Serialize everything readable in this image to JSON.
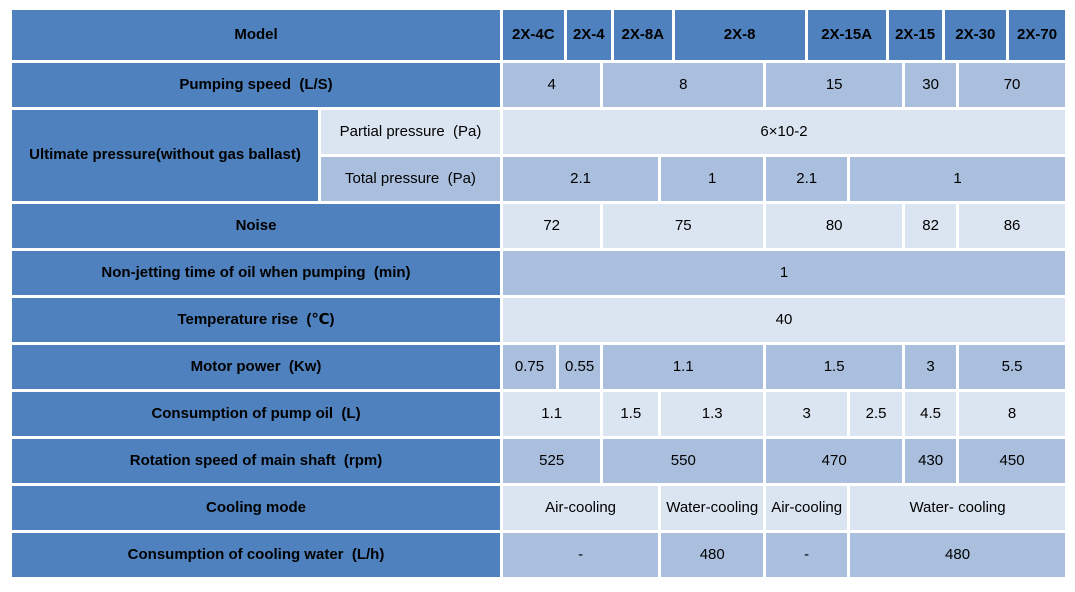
{
  "colors": {
    "header_bg": "#4E81BD",
    "row_light_bg": "#DBE5F1",
    "row_medium_bg": "#A9BFDD",
    "border": "#FFFFFF",
    "text": "#000000"
  },
  "header": {
    "model_label": "Model",
    "models": [
      "2X-4C",
      "2X-4",
      "2X-8A",
      "2X-8",
      "2X-15A",
      "2X-15",
      "2X-30",
      "2X-70"
    ]
  },
  "ultimate": {
    "label": "Ultimate pressure(without gas ballast)",
    "sub_rows": [
      {
        "label": "Partial pressure  (Pa)",
        "shade": "light",
        "cells": [
          {
            "v": "6×10-2",
            "span": 8
          }
        ]
      },
      {
        "label": "Total pressure  (Pa)",
        "shade": "medium",
        "cells": [
          {
            "v": "2.1",
            "span": 3
          },
          {
            "v": "1",
            "span": 1
          },
          {
            "v": "2.1",
            "span": 1
          },
          {
            "v": "1",
            "span": 3
          }
        ]
      }
    ]
  },
  "rows": [
    {
      "label": "Pumping speed  (L/S)",
      "shade": "medium",
      "cells": [
        {
          "v": "4",
          "span": 2
        },
        {
          "v": "8",
          "span": 2
        },
        {
          "v": "15",
          "span": 2
        },
        {
          "v": "30",
          "span": 1
        },
        {
          "v": "70",
          "span": 1
        }
      ]
    },
    {
      "label": "Noise",
      "shade": "light",
      "cells": [
        {
          "v": "72",
          "span": 2
        },
        {
          "v": "75",
          "span": 2
        },
        {
          "v": "80",
          "span": 2
        },
        {
          "v": "82",
          "span": 1
        },
        {
          "v": "86",
          "span": 1
        }
      ]
    },
    {
      "label": "Non-jetting time of oil when pumping  (min)",
      "shade": "medium",
      "cells": [
        {
          "v": "1",
          "span": 8
        }
      ]
    },
    {
      "label": "Temperature rise  (℃)",
      "shade": "light",
      "cells": [
        {
          "v": "40",
          "span": 8
        }
      ]
    },
    {
      "label": "Motor power  (Kw)",
      "shade": "medium",
      "cells": [
        {
          "v": "0.75",
          "span": 1
        },
        {
          "v": "0.55",
          "span": 1
        },
        {
          "v": "1.1",
          "span": 2
        },
        {
          "v": "1.5",
          "span": 2
        },
        {
          "v": "3",
          "span": 1
        },
        {
          "v": "5.5",
          "span": 1
        }
      ]
    },
    {
      "label": "Consumption of pump oil  (L)",
      "shade": "light",
      "cells": [
        {
          "v": "1.1",
          "span": 2
        },
        {
          "v": "1.5",
          "span": 1
        },
        {
          "v": "1.3",
          "span": 1
        },
        {
          "v": "3",
          "span": 1
        },
        {
          "v": "2.5",
          "span": 1
        },
        {
          "v": "4.5",
          "span": 1
        },
        {
          "v": "8",
          "span": 1
        }
      ]
    },
    {
      "label": "Rotation speed of main shaft  (rpm)",
      "shade": "medium",
      "cells": [
        {
          "v": "525",
          "span": 2
        },
        {
          "v": "550",
          "span": 2
        },
        {
          "v": "470",
          "span": 2
        },
        {
          "v": "430",
          "span": 1
        },
        {
          "v": "450",
          "span": 1
        }
      ]
    },
    {
      "label": "Cooling mode",
      "shade": "light",
      "cells": [
        {
          "v": "Air-cooling",
          "span": 3
        },
        {
          "v": "Water-cooling",
          "span": 1
        },
        {
          "v": "Air-cooling",
          "span": 1
        },
        {
          "v": "Water- cooling",
          "span": 3
        }
      ]
    },
    {
      "label": "Consumption of cooling water  (L/h)",
      "shade": "medium",
      "cells": [
        {
          "v": "-",
          "span": 3
        },
        {
          "v": "480",
          "span": 1
        },
        {
          "v": "-",
          "span": 1
        },
        {
          "v": "480",
          "span": 3
        }
      ]
    }
  ]
}
